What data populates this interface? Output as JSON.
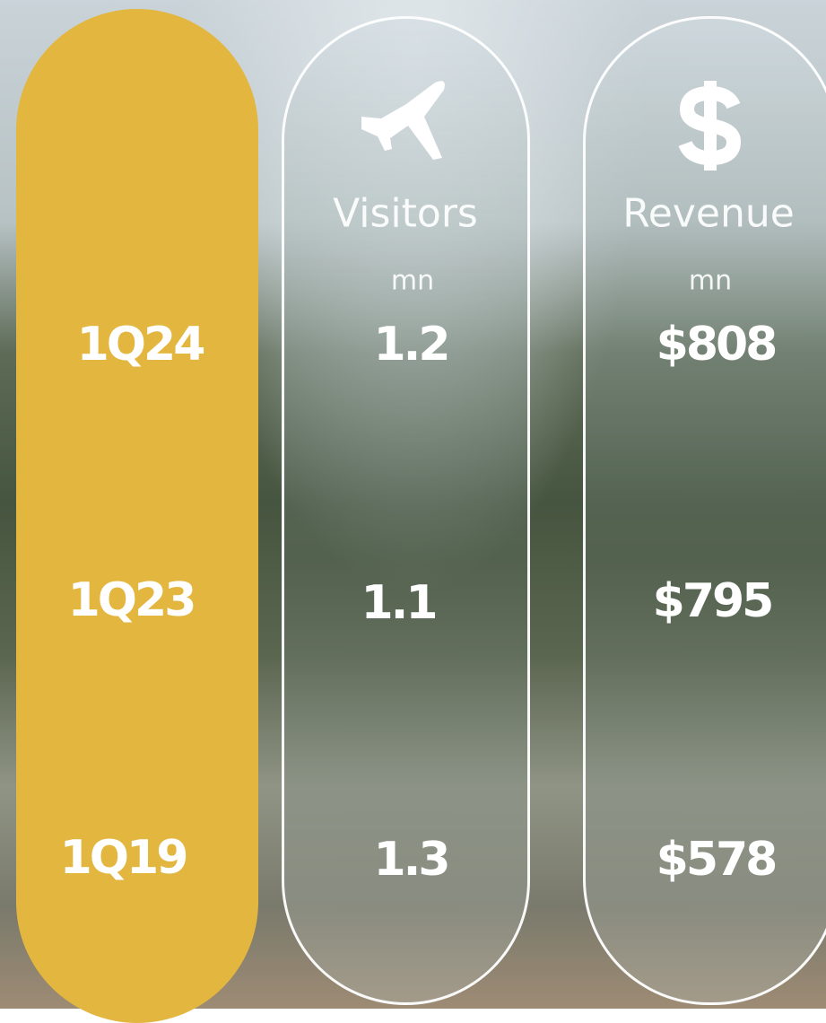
{
  "periods": [
    "1Q24",
    "1Q23",
    "1Q19"
  ],
  "columns": [
    {
      "label": "Visitors",
      "unit": "mn",
      "values": [
        "1.2",
        "1.1",
        "1.3"
      ]
    },
    {
      "label": "Revenue",
      "unit": "mn",
      "values": [
        "$808",
        "$795",
        "$578"
      ]
    }
  ]
}
